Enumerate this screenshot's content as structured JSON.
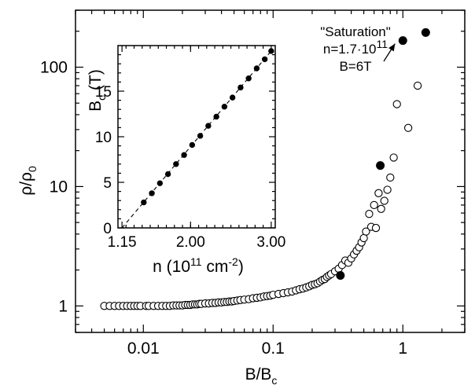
{
  "chart_data": [
    {
      "type": "scatter",
      "xlabel": "B/B",
      "xlabel_sub": "c",
      "ylabel": "ρ/ρ",
      "ylabel_sub": "0",
      "xscale": "log",
      "yscale": "log",
      "xlim": [
        0.003,
        3
      ],
      "ylim": [
        0.6,
        300
      ],
      "x_ticks": [
        {
          "value": 0.01,
          "label": "0.01"
        },
        {
          "value": 0.1,
          "label": "0.1"
        },
        {
          "value": 1,
          "label": "1"
        }
      ],
      "y_ticks": [
        {
          "value": 1,
          "label": "1"
        },
        {
          "value": 10,
          "label": "10"
        },
        {
          "value": 100,
          "label": "100"
        }
      ],
      "series": [
        {
          "marker": "open-circle",
          "x": [
            0.005,
            0.0055,
            0.006,
            0.0065,
            0.007,
            0.0075,
            0.008,
            0.0085,
            0.009,
            0.0095,
            0.0105,
            0.011,
            0.012,
            0.013,
            0.014,
            0.015,
            0.016,
            0.017,
            0.018,
            0.019,
            0.02,
            0.021,
            0.022,
            0.023,
            0.024,
            0.025,
            0.026,
            0.027,
            0.028,
            0.03,
            0.032,
            0.034,
            0.036,
            0.038,
            0.04,
            0.042,
            0.044,
            0.046,
            0.048,
            0.05,
            0.053,
            0.056,
            0.06,
            0.065,
            0.07,
            0.075,
            0.08,
            0.085,
            0.09,
            0.095,
            0.1,
            0.11,
            0.12,
            0.13,
            0.14,
            0.15,
            0.16,
            0.17,
            0.18,
            0.19,
            0.2,
            0.21,
            0.22,
            0.23,
            0.24,
            0.25,
            0.26,
            0.27,
            0.28,
            0.3,
            0.32,
            0.34,
            0.36,
            0.38,
            0.4,
            0.42,
            0.44,
            0.46,
            0.48,
            0.5,
            0.52,
            0.55,
            0.57,
            0.6,
            0.62,
            0.65,
            0.68,
            0.72,
            0.76,
            0.8,
            0.85,
            0.9,
            1.1,
            1.3
          ],
          "y": [
            1,
            1,
            1,
            1,
            1,
            1,
            1,
            1,
            1,
            1,
            1,
            1,
            1,
            1,
            1,
            1,
            1,
            1.01,
            1.01,
            1.01,
            1.01,
            1.02,
            1.02,
            1.02,
            1.03,
            1.03,
            1.03,
            1.04,
            1.04,
            1.05,
            1.05,
            1.06,
            1.06,
            1.07,
            1.07,
            1.08,
            1.08,
            1.09,
            1.09,
            1.1,
            1.11,
            1.12,
            1.13,
            1.14,
            1.16,
            1.17,
            1.18,
            1.2,
            1.21,
            1.22,
            1.24,
            1.26,
            1.28,
            1.3,
            1.32,
            1.35,
            1.38,
            1.4,
            1.43,
            1.46,
            1.5,
            1.52,
            1.55,
            1.6,
            1.65,
            1.68,
            1.75,
            1.8,
            1.85,
            1.95,
            2.05,
            2.2,
            2.4,
            2.3,
            2.5,
            2.7,
            2.9,
            3.1,
            3.4,
            3.7,
            4.2,
            5.9,
            4.6,
            7,
            4.5,
            8.8,
            6.5,
            7.6,
            9.4,
            11.9,
            17.5,
            49,
            31,
            70
          ]
        },
        {
          "marker": "filled-circle",
          "x": [
            0.33,
            0.67,
            1.0,
            1.5
          ],
          "y": [
            1.8,
            15,
            167,
            195
          ]
        }
      ],
      "annotations": [
        {
          "text": "\"Saturation\"",
          "x": 1.0,
          "y": 167
        },
        {
          "text": "n=1.7·10",
          "sup": "11",
          "x": 1.0,
          "y": 167
        },
        {
          "text": "B=6T",
          "x": 1.0,
          "y": 167
        }
      ]
    },
    {
      "type": "scatter",
      "inset": true,
      "xlabel": "n  (10",
      "xlabel_sup": "11",
      "xlabel_unit": " cm",
      "xlabel_unit_sup": "-2",
      "xlabel_end": ")",
      "ylabel": "B",
      "ylabel_sub": "c",
      "ylabel_unit": " (T)",
      "xlim": [
        1.1,
        3.05
      ],
      "ylim": [
        0,
        20
      ],
      "x_ticks": [
        {
          "value": 1.15,
          "label": "1.15"
        },
        {
          "value": 2.0,
          "label": "2.00"
        },
        {
          "value": 3.0,
          "label": "3.00"
        }
      ],
      "y_ticks": [
        {
          "value": 0,
          "label": "0"
        },
        {
          "value": 5,
          "label": "5"
        },
        {
          "value": 10,
          "label": "10"
        },
        {
          "value": 15,
          "label": "15"
        }
      ],
      "series": [
        {
          "marker": "filled-circle",
          "x": [
            1.42,
            1.52,
            1.62,
            1.72,
            1.82,
            1.92,
            2.02,
            2.12,
            2.22,
            2.32,
            2.42,
            2.52,
            2.62,
            2.72,
            2.82,
            2.92,
            3.0
          ],
          "y": [
            2.8,
            3.8,
            4.9,
            5.9,
            7.0,
            8.0,
            9.1,
            10.1,
            11.2,
            12.2,
            13.3,
            14.3,
            15.4,
            16.4,
            17.5,
            18.5,
            19.4
          ]
        }
      ],
      "fit_line": {
        "x": [
          1.15,
          3.0
        ],
        "y": [
          0,
          19.4
        ],
        "style": "dashed"
      }
    }
  ]
}
